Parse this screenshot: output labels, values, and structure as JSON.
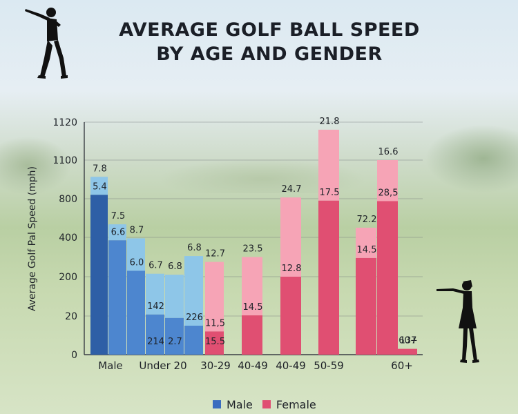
{
  "chart_data": {
    "type": "bar",
    "title_lines": [
      "AVERAGE GOLF BALL SPEED",
      "BY AGE AND GENDER"
    ],
    "ylabel": "Average Golf Pal Speed (mph)",
    "y_ticks": [
      "0",
      "20",
      "200",
      "400",
      "800",
      "1100",
      "1120"
    ],
    "category_labels": [
      "Male",
      "Under 20",
      "30-29",
      "40-49",
      "40-49",
      "50-59",
      "60+"
    ],
    "legend": [
      {
        "label": "Male",
        "color": "#3a6cbf"
      },
      {
        "label": "Female",
        "color": "#e04f72"
      }
    ],
    "bars": [
      {
        "gender": "male",
        "dark": 830,
        "total": 970,
        "top_label": "7.8",
        "inner_label": "5.4"
      },
      {
        "gender": "male",
        "dark": 385,
        "total": 535,
        "top_label": "7.5",
        "inner_label": "6.6"
      },
      {
        "gender": "male",
        "dark": 230,
        "total": 395,
        "top_label": "8.7",
        "inner_label": "6.0"
      },
      {
        "gender": "male",
        "dark": 27,
        "total": 215,
        "top_label": "6.7",
        "inner_label": "142",
        "bottom_label": "214"
      },
      {
        "gender": "male",
        "dark": 19,
        "total": 210,
        "top_label": "6.8",
        "bottom_label": "2.7"
      },
      {
        "gender": "male",
        "dark": 15,
        "total": 305,
        "top_label": "6.8",
        "inner_label": "226"
      },
      {
        "gender": "female",
        "dark": 12,
        "total": 275,
        "top_label": "12.7",
        "inner_label": "11,5",
        "bottom_label": "15.5"
      },
      {
        "gender": "female",
        "dark": 23,
        "total": 300,
        "top_label": "23.5",
        "inner_label": "14.5"
      },
      {
        "gender": "female",
        "dark": 200,
        "total": 810,
        "top_label": "24.7",
        "inner_label": "12.8"
      },
      {
        "gender": "female",
        "dark": 780,
        "total": 1116,
        "top_label": "21.8",
        "inner_label": "17.5"
      },
      {
        "gender": "female",
        "dark": 295,
        "total": 500,
        "top_label": "72.2",
        "inner_label": "14.5"
      },
      {
        "gender": "female",
        "dark": 775,
        "total": 1100,
        "top_label": "16.6",
        "inner_label": "28,5"
      },
      {
        "gender": "female",
        "dark": 3,
        "total": 3,
        "top_label": "60+",
        "inner_label": "137"
      }
    ],
    "colors": {
      "male_dark": "#2e5fa6",
      "male_mid": "#4d86cf",
      "male_light": "#8ec6e8",
      "female_dark": "#e04f72",
      "female_light": "#f6a4b6"
    },
    "grid": true
  }
}
